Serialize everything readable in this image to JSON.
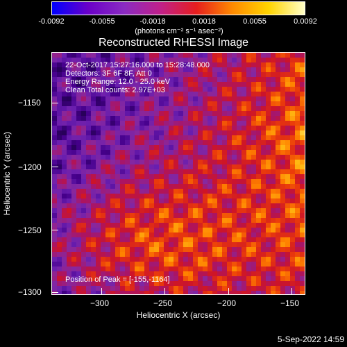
{
  "colorbar": {
    "tick_labels": [
      "-0.0092",
      "-0.0055",
      "-0.0018",
      "0.0018",
      "0.0055",
      "0.0092"
    ],
    "units": "(photons cm⁻² s⁻¹ asec⁻²)",
    "range": [
      -0.0092,
      0.0092
    ],
    "colors": [
      "#0000ff",
      "#6a00c8",
      "#8a2bc2",
      "#c0208a",
      "#e61e1e",
      "#ff8a00",
      "#ffd400",
      "#ffffc8"
    ]
  },
  "title": "Reconstructed RHESSI Image",
  "info": {
    "line1": "22-Oct-2017 15:27:16.000 to 15:28:48.000",
    "line2": "Detectors: 3F 6F 8F, Att 0",
    "line3": "Energy Range: 12.0 - 25.0 keV",
    "line4": "Clean     Total counts: 2.97E+03",
    "peak": "Position of Peak = [-155,-1164]"
  },
  "chart_data": {
    "type": "heatmap",
    "title": "Reconstructed RHESSI Image",
    "xlabel": "Heliocentric X (arcsec)",
    "ylabel": "Heliocentric Y (arcsec)",
    "xlim": [
      -340,
      -148
    ],
    "ylim": [
      -1302,
      -1130
    ],
    "xticks": [
      -300,
      -250,
      -200,
      -150
    ],
    "yticks": [
      -1150,
      -1200,
      -1250,
      -1300
    ],
    "xtick_labels": [
      "−300",
      "−250",
      "−200",
      "−150"
    ],
    "ytick_labels": [
      "−1150",
      "−1200",
      "−1250",
      "−1300"
    ],
    "peak_position": [
      -155,
      -1164
    ]
  },
  "date_stamp": "5-Sep-2022 14:59"
}
